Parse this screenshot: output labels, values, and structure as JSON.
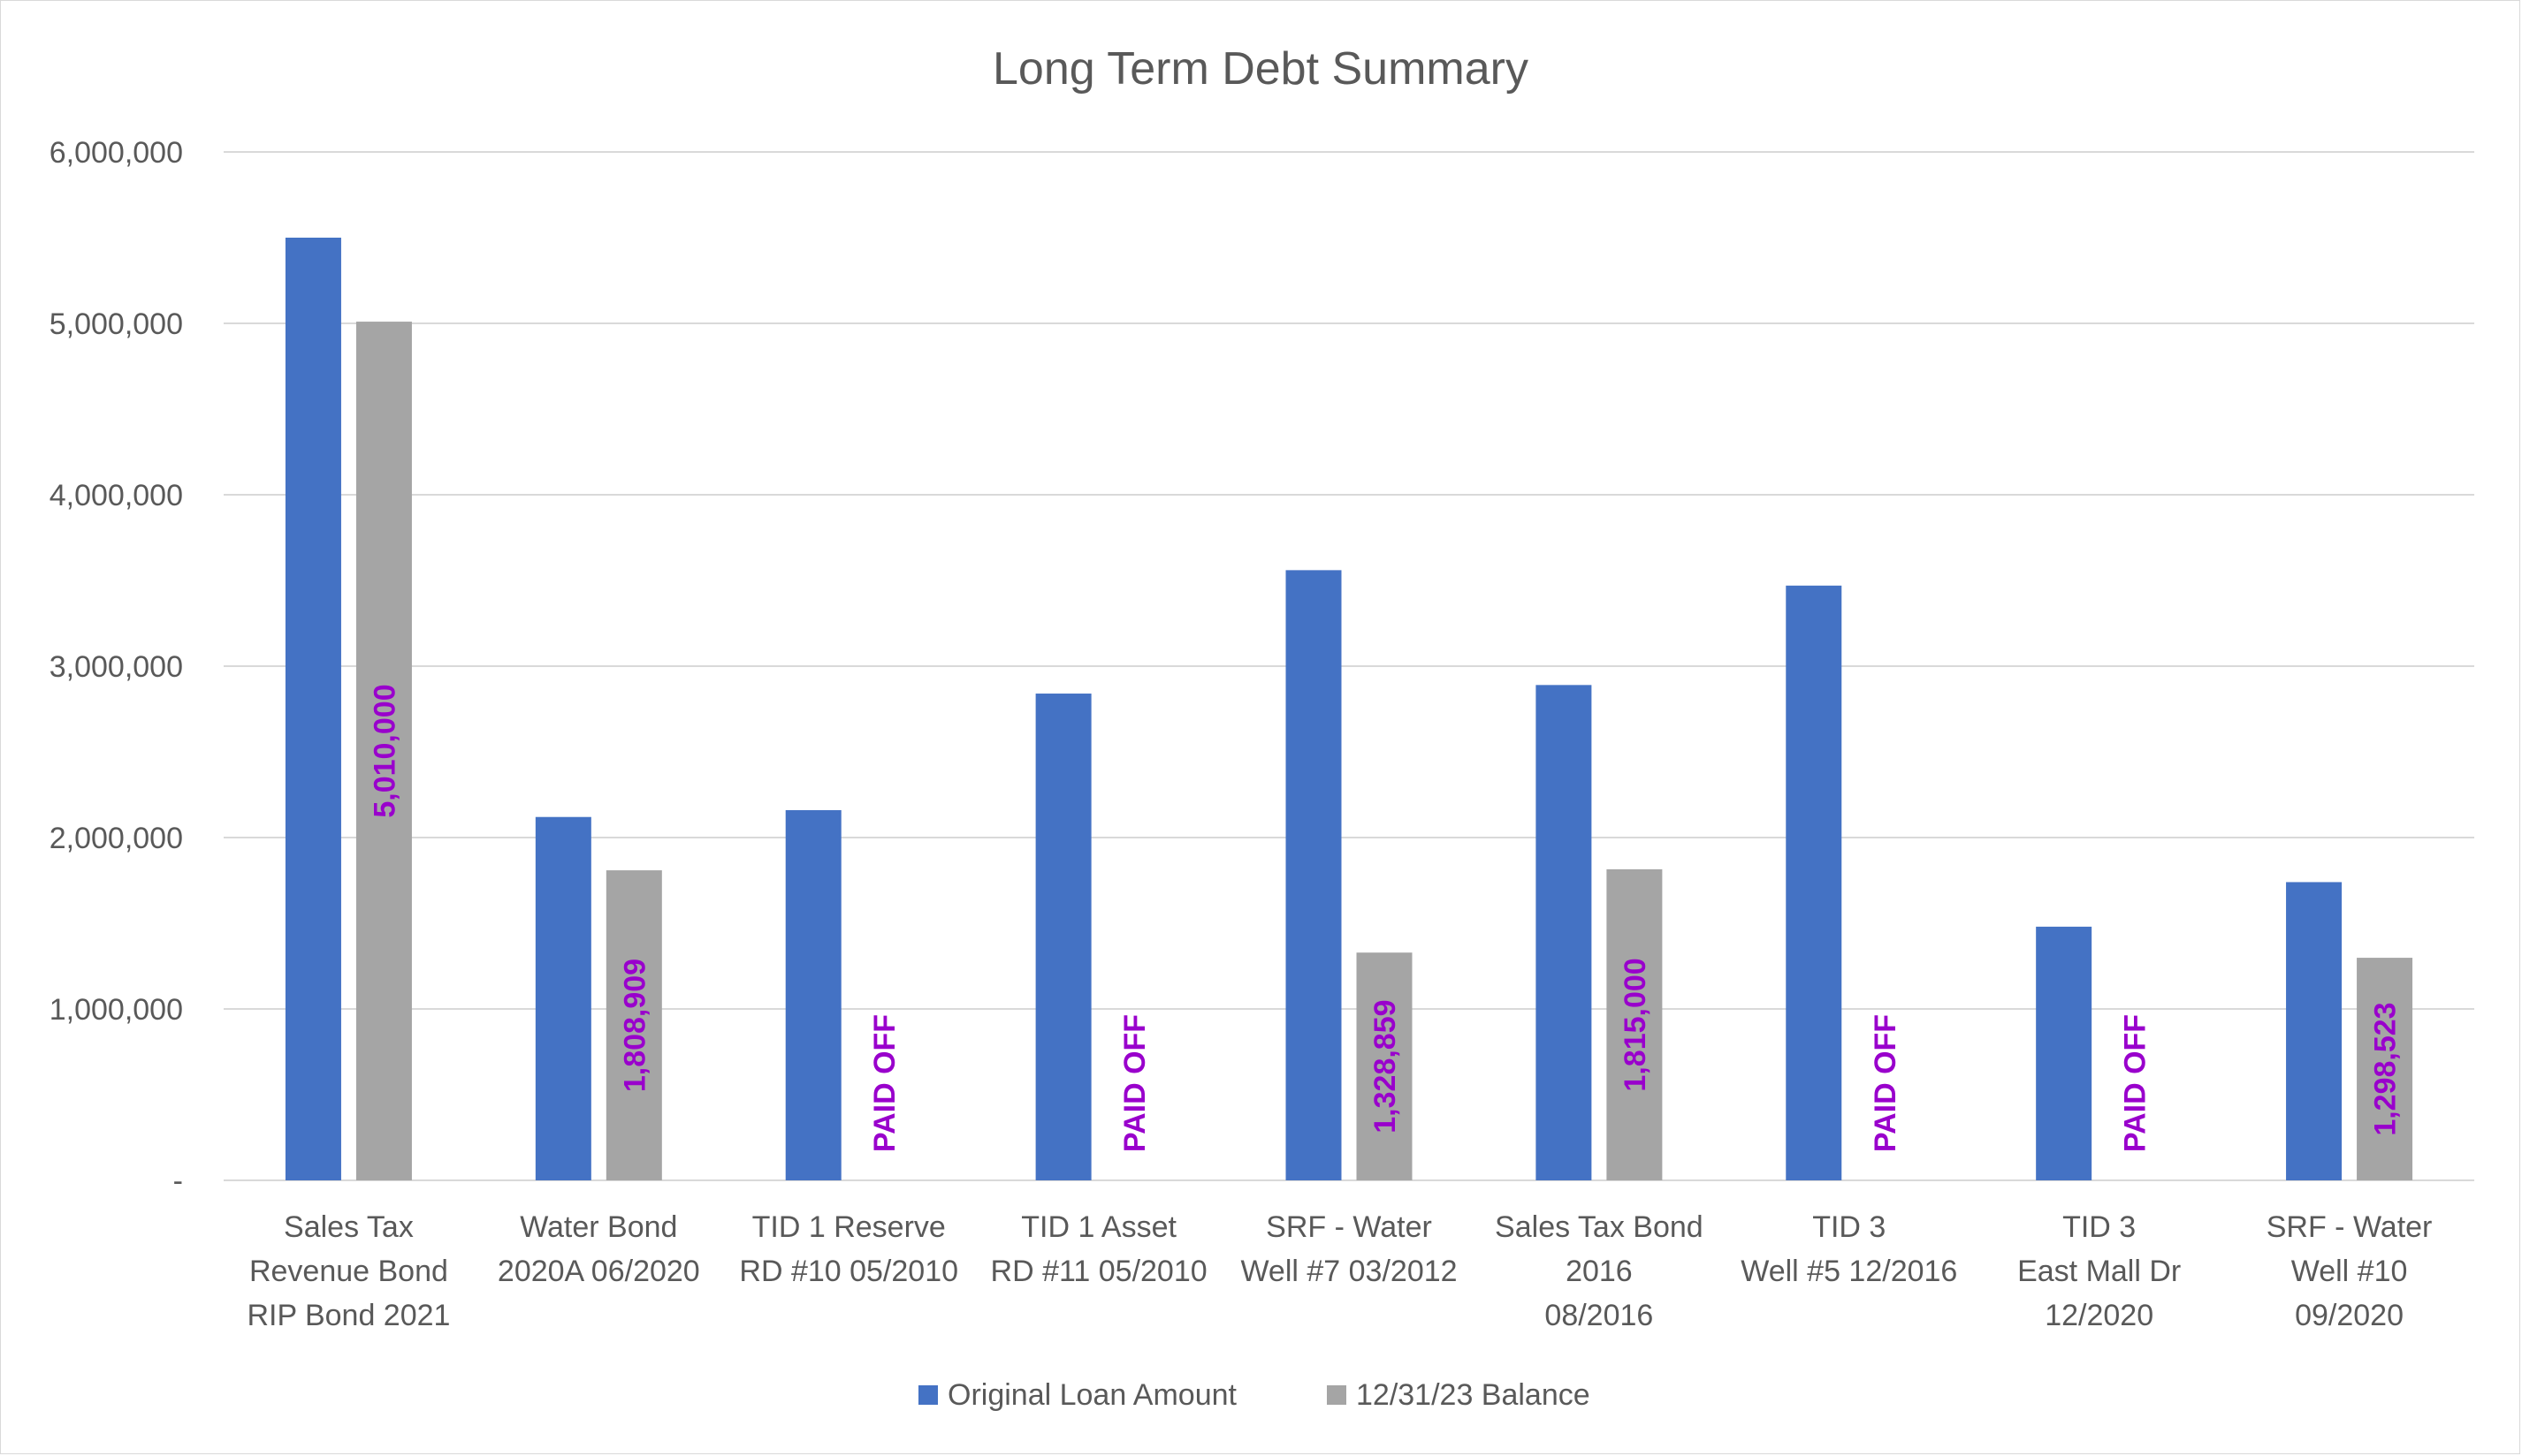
{
  "chart_data": {
    "type": "bar",
    "title": "Long Term Debt Summary",
    "xlabel": "",
    "ylabel": "",
    "ylim": [
      0,
      6000000
    ],
    "yticks": [
      {
        "value": 0,
        "label": "-"
      },
      {
        "value": 1000000,
        "label": "1,000,000"
      },
      {
        "value": 2000000,
        "label": "2,000,000"
      },
      {
        "value": 3000000,
        "label": "3,000,000"
      },
      {
        "value": 4000000,
        "label": "4,000,000"
      },
      {
        "value": 5000000,
        "label": "5,000,000"
      },
      {
        "value": 6000000,
        "label": "6,000,000"
      }
    ],
    "grid": true,
    "legend_position": "bottom",
    "categories": [
      [
        "Sales Tax",
        "Revenue Bond",
        "RIP Bond 2021"
      ],
      [
        "Water Bond",
        "2020A 06/2020"
      ],
      [
        "TID 1 Reserve",
        "RD #10 05/2010"
      ],
      [
        "TID 1 Asset",
        "RD #11 05/2010"
      ],
      [
        "SRF - Water",
        "Well #7 03/2012"
      ],
      [
        "Sales Tax Bond",
        "2016",
        "08/2016"
      ],
      [
        "TID 3",
        "Well #5 12/2016"
      ],
      [
        "TID 3",
        "East Mall Dr",
        "12/2020"
      ],
      [
        "SRF - Water",
        "Well #10",
        "09/2020"
      ]
    ],
    "series": [
      {
        "name": "Original Loan Amount",
        "color": "#4472c4",
        "values": [
          5500000,
          2120000,
          2160000,
          2840000,
          3560000,
          2890000,
          3470000,
          1480000,
          1740000
        ]
      },
      {
        "name": "12/31/23 Balance",
        "color": "#a5a5a5",
        "values": [
          5010000,
          1808909,
          0,
          0,
          1328859,
          1815000,
          0,
          0,
          1298523
        ],
        "labels": [
          "5,010,000",
          "1,808,909",
          "PAID OFF",
          "PAID OFF",
          "1,328,859",
          "1,815,000",
          "PAID OFF",
          "PAID OFF",
          "1,298,523"
        ]
      }
    ],
    "label_color": "#9900cc",
    "gridline_color": "#d9d9d9",
    "text_color": "#595959"
  }
}
